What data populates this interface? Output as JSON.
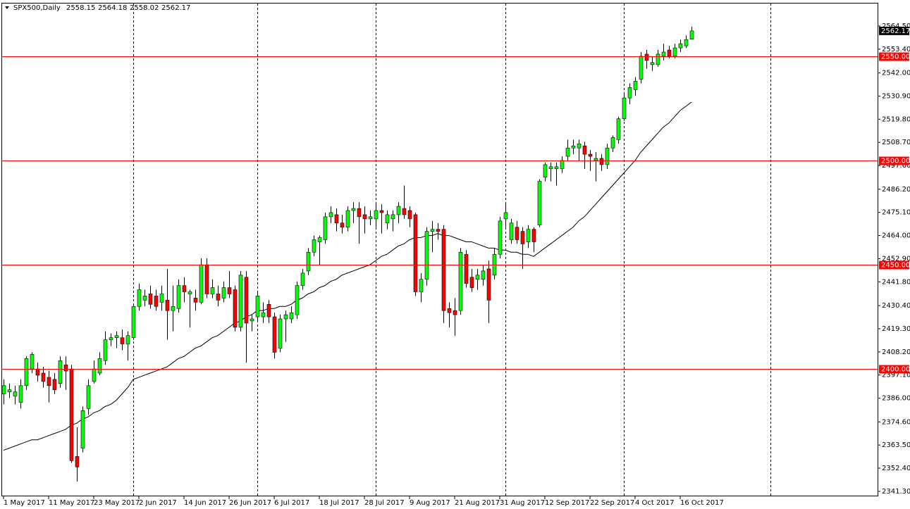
{
  "chart_data": {
    "type": "candlestick",
    "title": "SPX500,Daily",
    "categories": [
      "1 May 2017",
      null,
      null,
      null,
      null,
      null,
      null,
      null,
      "11 May 2017",
      null,
      null,
      null,
      null,
      null,
      null,
      null,
      "23 May 2017",
      null,
      null,
      null,
      null,
      null,
      null,
      null,
      "2 Jun 2017",
      null,
      null,
      null,
      null,
      null,
      null,
      null,
      "14 Jun 2017",
      null,
      null,
      null,
      null,
      null,
      null,
      null,
      "26 Jun 2017",
      null,
      null,
      null,
      null,
      null,
      null,
      null,
      "6 Jul 2017",
      null,
      null,
      null,
      null,
      null,
      null,
      null,
      "18 Jul 2017",
      null,
      null,
      null,
      null,
      null,
      null,
      null,
      "28 Jul 2017",
      null,
      null,
      null,
      null,
      null,
      null,
      null,
      "9 Aug 2017",
      null,
      null,
      null,
      null,
      null,
      null,
      null,
      "21 Aug 2017",
      null,
      null,
      null,
      null,
      null,
      null,
      null,
      "31 Aug 2017",
      null,
      null,
      null,
      null,
      null,
      null,
      null,
      "12 Sep 2017",
      null,
      null,
      null,
      null,
      null,
      null,
      null,
      "22 Sep 2017",
      null,
      null,
      null,
      null,
      null,
      null,
      null,
      "4 Oct 2017",
      null,
      null,
      null,
      null,
      null,
      null,
      null,
      "16 Oct 2017",
      null,
      null
    ],
    "open": [
      2388,
      2389,
      2387,
      2384,
      2392,
      2400,
      2400,
      2398,
      2396,
      2395,
      2393,
      2402,
      2400,
      2358,
      2362,
      2381,
      2394,
      2398,
      2404,
      2414,
      2415,
      2415,
      2412,
      2415,
      2430,
      2433,
      2436,
      2435,
      2432,
      2433,
      2428,
      2429,
      2440,
      2436,
      2434,
      2432,
      2450,
      2436,
      2436,
      2434,
      2439,
      2438,
      2420,
      2444,
      2423,
      2425,
      2425,
      2431,
      2425,
      2410,
      2424,
      2424,
      2426,
      2440,
      2447,
      2456,
      2461,
      2462,
      2473,
      2474,
      2470,
      2468,
      2476,
      2477,
      2474,
      2472,
      2472,
      2476,
      2470,
      2472,
      2474,
      2477,
      2476,
      2474,
      2437,
      2443,
      2466,
      2467,
      2467,
      2429,
      2428,
      2428,
      2455,
      2444,
      2443,
      2443,
      2448,
      2445,
      2455,
      2472,
      2462,
      2468,
      2466,
      2461,
      2467,
      2469,
      2492,
      2496,
      2496,
      2496,
      2502,
      2506,
      2506,
      2507,
      2503,
      2500,
      2501,
      2498,
      2506,
      2510,
      2520,
      2530,
      2534,
      2539,
      2551,
      2546,
      2546,
      2550,
      2553,
      2550,
      2554,
      2555,
      2558.15
    ],
    "high": [
      2395,
      2393,
      2392,
      2395,
      2406,
      2408,
      2403,
      2401,
      2399,
      2398,
      2406,
      2406,
      2402,
      2372,
      2382,
      2395,
      2404,
      2408,
      2418,
      2417,
      2418,
      2419,
      2418,
      2431,
      2441,
      2438,
      2440,
      2438,
      2440,
      2448,
      2440,
      2443,
      2444,
      2438,
      2438,
      2453,
      2453,
      2443,
      2440,
      2442,
      2447,
      2440,
      2447,
      2447,
      2426,
      2437,
      2432,
      2433,
      2427,
      2426,
      2428,
      2430,
      2442,
      2448,
      2458,
      2464,
      2464,
      2475,
      2478,
      2477,
      2474,
      2478,
      2480,
      2480,
      2478,
      2476,
      2480,
      2479,
      2476,
      2476,
      2480,
      2488,
      2478,
      2475,
      2446,
      2468,
      2471,
      2470,
      2469,
      2432,
      2434,
      2458,
      2457,
      2448,
      2448,
      2450,
      2452,
      2458,
      2473,
      2479,
      2472,
      2471,
      2468,
      2469,
      2468,
      2491,
      2499,
      2499,
      2499,
      2502,
      2510,
      2510,
      2510,
      2509,
      2505,
      2504,
      2503,
      2508,
      2512,
      2521,
      2532,
      2537,
      2540,
      2552,
      2553,
      2550,
      2553,
      2556,
      2555,
      2556,
      2558,
      2560,
      2564.18
    ],
    "low": [
      2383,
      2386,
      2383,
      2381,
      2390,
      2398,
      2394,
      2391,
      2384,
      2388,
      2391,
      2390,
      2355,
      2346,
      2360,
      2378,
      2393,
      2397,
      2402,
      2411,
      2410,
      2409,
      2404,
      2414,
      2428,
      2430,
      2429,
      2428,
      2428,
      2414,
      2418,
      2427,
      2432,
      2420,
      2428,
      2431,
      2434,
      2434,
      2430,
      2432,
      2434,
      2418,
      2418,
      2403,
      2418,
      2423,
      2422,
      2422,
      2405,
      2408,
      2413,
      2422,
      2424,
      2438,
      2445,
      2454,
      2450,
      2460,
      2470,
      2466,
      2465,
      2466,
      2470,
      2460,
      2465,
      2469,
      2468,
      2465,
      2467,
      2466,
      2470,
      2472,
      2468,
      2435,
      2432,
      2440,
      2456,
      2462,
      2422,
      2420,
      2416,
      2426,
      2439,
      2437,
      2438,
      2440,
      2422,
      2443,
      2453,
      2468,
      2460,
      2460,
      2448,
      2458,
      2456,
      2468,
      2490,
      2490,
      2488,
      2494,
      2500,
      2503,
      2500,
      2496,
      2495,
      2490,
      2495,
      2496,
      2504,
      2508,
      2519,
      2527,
      2531,
      2537,
      2544,
      2543,
      2545,
      2548,
      2549,
      2549,
      2552,
      2554,
      2558.02
    ],
    "close": [
      2392,
      2390,
      2389,
      2392,
      2405,
      2407,
      2397,
      2394,
      2392,
      2390,
      2404,
      2399,
      2356,
      2353,
      2380,
      2392,
      2400,
      2405,
      2414,
      2415,
      2416,
      2412,
      2416,
      2430,
      2438,
      2435,
      2431,
      2430,
      2436,
      2428,
      2430,
      2440,
      2437,
      2437,
      2432,
      2450,
      2436,
      2439,
      2433,
      2439,
      2436,
      2420,
      2445,
      2422,
      2424,
      2435,
      2427,
      2425,
      2408,
      2424,
      2426,
      2427,
      2440,
      2446,
      2456,
      2462,
      2463,
      2473,
      2475,
      2470,
      2468,
      2476,
      2477,
      2473,
      2472,
      2473,
      2476,
      2475,
      2474,
      2474,
      2478,
      2474,
      2472,
      2437,
      2443,
      2466,
      2467,
      2466,
      2428,
      2427,
      2426,
      2456,
      2441,
      2439,
      2445,
      2447,
      2433,
      2455,
      2471,
      2475,
      2470,
      2462,
      2460,
      2467,
      2461,
      2490,
      2498,
      2497,
      2497,
      2500,
      2506,
      2507,
      2508,
      2503,
      2502,
      2501,
      2498,
      2506,
      2511,
      2520,
      2530,
      2535,
      2538,
      2550,
      2548,
      2547,
      2551,
      2552,
      2550,
      2554,
      2556,
      2558,
      2562.17
    ],
    "moving_average": [
      2361,
      2362,
      2363,
      2364,
      2365,
      2366,
      2366,
      2367,
      2368,
      2369,
      2370,
      2371,
      2373,
      2374,
      2376,
      2377,
      2379,
      2380,
      2382,
      2383,
      2385,
      2388,
      2391,
      2395,
      2396,
      2397,
      2398,
      2399,
      2400,
      2401,
      2403,
      2405,
      2406,
      2408,
      2410,
      2411,
      2413,
      2415,
      2416,
      2418,
      2420,
      2422,
      2423,
      2425,
      2426,
      2428,
      2428,
      2429,
      2429,
      2430,
      2430,
      2431,
      2433,
      2434,
      2436,
      2437,
      2439,
      2440,
      2442,
      2443,
      2445,
      2446,
      2447,
      2448,
      2449,
      2450,
      2452,
      2454,
      2455,
      2457,
      2459,
      2460,
      2462,
      2463,
      2463,
      2464,
      2464,
      2465,
      2464,
      2464,
      2463,
      2462,
      2461,
      2461,
      2460,
      2459,
      2458,
      2458,
      2457,
      2457,
      2456,
      2456,
      2455,
      2455,
      2454,
      2456,
      2458,
      2460,
      2462,
      2464,
      2466,
      2468,
      2471,
      2473,
      2476,
      2479,
      2482,
      2485,
      2488,
      2491,
      2494,
      2497,
      2500,
      2504,
      2507,
      2510,
      2513,
      2516,
      2518,
      2521,
      2524,
      2526,
      2528
    ],
    "up_color": "#00ff00",
    "down_color": "#ff0000",
    "level_color": "#ff0000",
    "levels": [
      {
        "value": 2550,
        "label": "2550.00"
      },
      {
        "value": 2500,
        "label": "2500.00"
      },
      {
        "value": 2450,
        "label": "2450.00"
      },
      {
        "value": 2400,
        "label": "2400.00"
      }
    ],
    "ylim": [
      2338.9,
      2575.3
    ],
    "yticks": [
      {
        "value": 2564.5,
        "label": "2564.50"
      },
      {
        "value": 2553.4,
        "label": "2553.40"
      },
      {
        "value": 2542,
        "label": "2542.00"
      },
      {
        "value": 2530.9,
        "label": "2530.90"
      },
      {
        "value": 2519.8,
        "label": "2519.80"
      },
      {
        "value": 2508.7,
        "label": "2508.70"
      },
      {
        "value": 2497.6,
        "label": "2497.60"
      },
      {
        "value": 2486.2,
        "label": "2486.20"
      },
      {
        "value": 2475.1,
        "label": "2475.10"
      },
      {
        "value": 2464,
        "label": "2464.00"
      },
      {
        "value": 2452.9,
        "label": "2452.90"
      },
      {
        "value": 2441.8,
        "label": "2441.80"
      },
      {
        "value": 2430.4,
        "label": "2430.40"
      },
      {
        "value": 2419.3,
        "label": "2419.30"
      },
      {
        "value": 2408.2,
        "label": "2408.20"
      },
      {
        "value": 2397.1,
        "label": "2397.10"
      },
      {
        "value": 2386,
        "label": "2386.00"
      },
      {
        "value": 2374.6,
        "label": "2374.60"
      },
      {
        "value": 2363.5,
        "label": "2363.50"
      },
      {
        "value": 2352.4,
        "label": "2352.40"
      },
      {
        "value": 2341.3,
        "label": "2341.30"
      }
    ]
  }
}
